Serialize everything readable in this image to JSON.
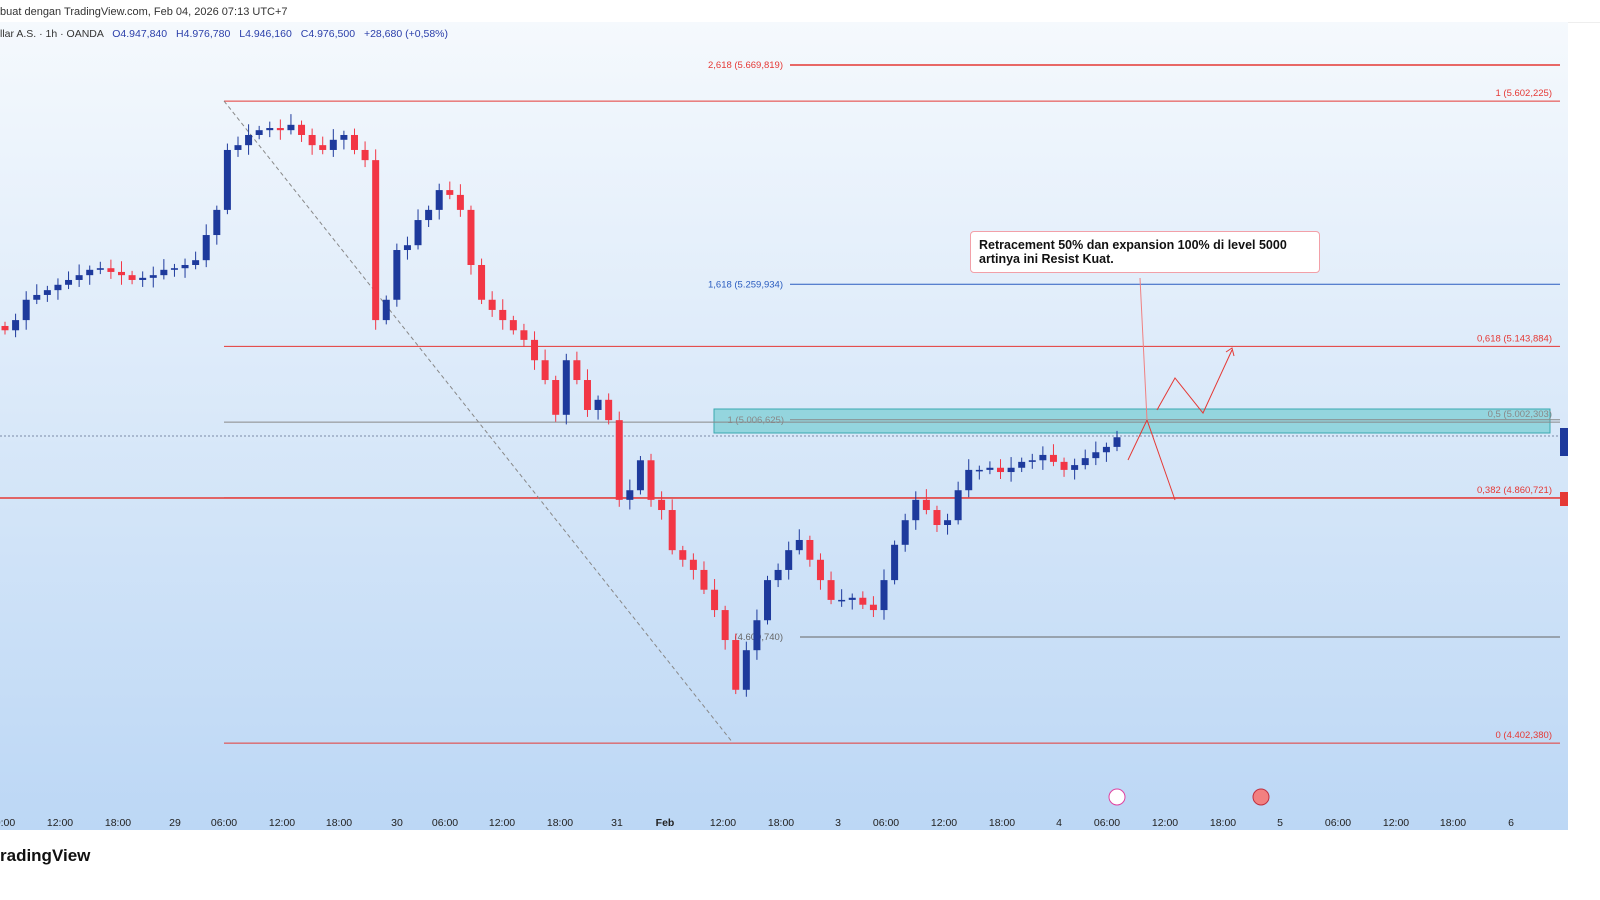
{
  "header": {
    "title": "buat dengan TradingView.com, Feb 04, 2026 07:13 UTC+7"
  },
  "legend": {
    "symbol": "llar A.S. · 1h · OANDA",
    "open": "O4.947,840",
    "high": "H4.976,780",
    "low": "L4.946,160",
    "close": "C4.976,500",
    "change": "+28,680 (+0,58%)"
  },
  "fib": [
    {
      "label": "2,618 (5.669,819)",
      "price": 5669.819,
      "color": "#e53935",
      "side": "left"
    },
    {
      "label": "1 (5.602,225)",
      "price": 5602.225,
      "color": "#e53935",
      "side": "right"
    },
    {
      "label": "1,618 (5.259,934)",
      "price": 5259.934,
      "color": "#2a5cbf",
      "side": "left"
    },
    {
      "label": "0,618 (5.143,884)",
      "price": 5143.884,
      "color": "#e53935",
      "side": "right"
    },
    {
      "label": "0,5 (5.002,303)",
      "price": 5002.303,
      "color": "#888888",
      "side": "right"
    },
    {
      "label": "1 (5.006,625)",
      "price": 5006.625,
      "color": "#888888",
      "side": "left"
    },
    {
      "label": "0,382 (4.860,721)",
      "price": 4860.721,
      "color": "#e53935",
      "side": "right"
    },
    {
      "label": "(4.600,740)",
      "price": 4600.74,
      "color": "#666666",
      "side": "left"
    },
    {
      "label": "0 (4.402,380)",
      "price": 4402.38,
      "color": "#e53935",
      "side": "right"
    }
  ],
  "annotation": {
    "line1": "Retracement 50% dan expansion 100% di level 5000",
    "line2": "artinya ini Resist Kuat."
  },
  "colors": {
    "up": "#1e3a9c",
    "down": "#f23645",
    "zone": "#5bc4c8"
  },
  "closes": [
    5174,
    5193,
    5231,
    5240,
    5249,
    5259,
    5268,
    5277,
    5287,
    5290,
    5283,
    5277,
    5268,
    5272,
    5277,
    5287,
    5290,
    5296,
    5305,
    5352,
    5399,
    5511,
    5520,
    5539,
    5548,
    5552,
    5548,
    5558,
    5539,
    5520,
    5511,
    5530,
    5539,
    5511,
    5492,
    5193,
    5231,
    5324,
    5333,
    5380,
    5399,
    5436,
    5427,
    5399,
    5296,
    5231,
    5212,
    5193,
    5174,
    5156,
    5118,
    5081,
    5016,
    5118,
    5081,
    5025,
    5044,
    5006,
    4857,
    4875,
    4931,
    4857,
    4838,
    4763,
    4745,
    4726,
    4689,
    4651,
    4595,
    4502,
    4576,
    4632,
    4707,
    4726,
    4763,
    4782,
    4745,
    4707,
    4670,
    4670,
    4674,
    4661,
    4651,
    4707,
    4773,
    4819,
    4857,
    4838,
    4810,
    4819,
    4875,
    4913,
    4913,
    4917,
    4909,
    4917,
    4928,
    4931,
    4941,
    4928,
    4913,
    4922,
    4935,
    4946,
    4956,
    4974
  ],
  "axis": {
    "labels": [
      "0:00",
      "12:00",
      "18:00",
      "29",
      "06:00",
      "12:00",
      "18:00",
      "30",
      "06:00",
      "12:00",
      "18:00",
      "31",
      "Feb",
      "12:00",
      "18:00",
      "3",
      "06:00",
      "12:00",
      "18:00",
      "4",
      "06:00",
      "12:00",
      "18:00",
      "5",
      "06:00",
      "12:00",
      "18:00",
      "6"
    ]
  },
  "footer": {
    "brand": "radingView"
  }
}
